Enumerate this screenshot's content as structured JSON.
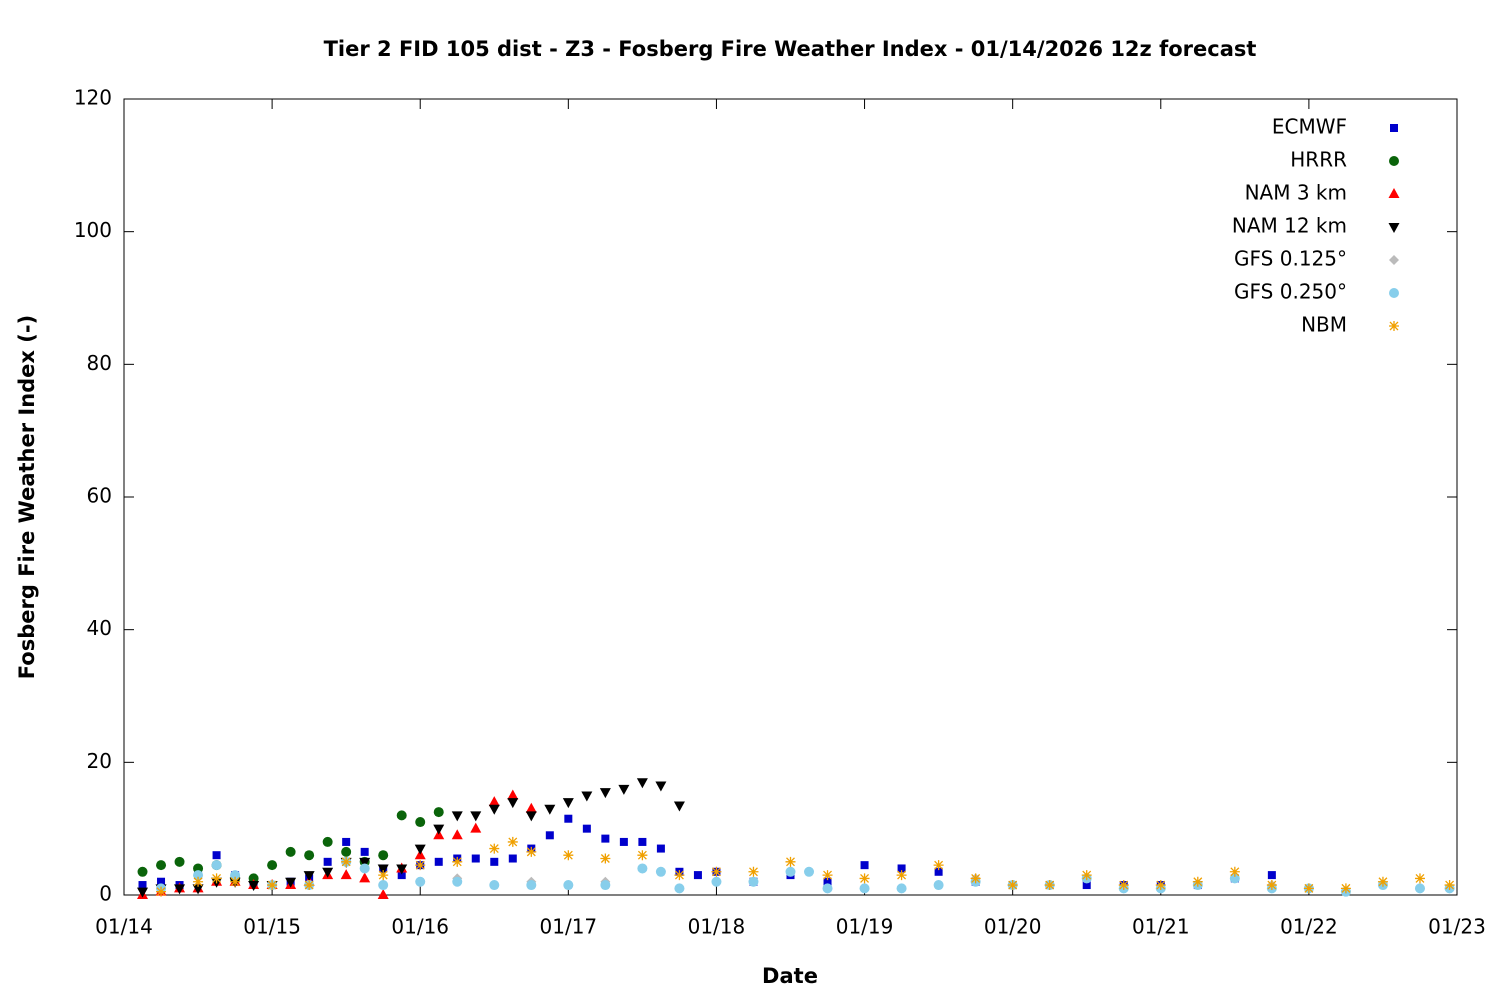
{
  "chart_data": {
    "type": "scatter",
    "title": "Tier 2 FID 105 dist - Z3 - Fosberg Fire Weather Index - 01/14/2026 12z forecast",
    "xlabel": "Date",
    "ylabel": "Fosberg Fire Weather Index (-)",
    "xlim": [
      14,
      23
    ],
    "xticks": [
      {
        "value": 14,
        "label": "01/14"
      },
      {
        "value": 15,
        "label": "01/15"
      },
      {
        "value": 16,
        "label": "01/16"
      },
      {
        "value": 17,
        "label": "01/17"
      },
      {
        "value": 18,
        "label": "01/18"
      },
      {
        "value": 19,
        "label": "01/19"
      },
      {
        "value": 20,
        "label": "01/20"
      },
      {
        "value": 21,
        "label": "01/21"
      },
      {
        "value": 22,
        "label": "01/22"
      },
      {
        "value": 23,
        "label": "01/23"
      }
    ],
    "ylim": [
      0,
      120
    ],
    "yticks": [
      0,
      20,
      40,
      60,
      80,
      100,
      120
    ],
    "legend": "top-right",
    "series": [
      {
        "name": "ECMWF",
        "color": "#0000cc",
        "marker": "square",
        "x": [
          14.125,
          14.25,
          14.375,
          14.5,
          14.625,
          14.75,
          14.875,
          15.0,
          15.125,
          15.25,
          15.375,
          15.5,
          15.625,
          15.75,
          15.875,
          16.0,
          16.125,
          16.25,
          16.375,
          16.5,
          16.625,
          16.75,
          16.875,
          17.0,
          17.125,
          17.25,
          17.375,
          17.5,
          17.625,
          17.75,
          17.875,
          18.0,
          18.25,
          18.5,
          18.75,
          19.0,
          19.25,
          19.5,
          19.75,
          20.0,
          20.25,
          20.5,
          20.75,
          21.0,
          21.25,
          21.5,
          21.75
        ],
        "values": [
          1.5,
          2,
          1.5,
          3,
          6,
          3,
          2,
          1.5,
          2,
          2.5,
          5,
          8,
          6.5,
          4,
          3,
          4.5,
          5,
          5.5,
          5.5,
          5,
          5.5,
          7,
          9,
          11.5,
          10,
          8.5,
          8,
          8,
          7,
          3.5,
          3,
          3.5,
          2,
          3,
          2,
          4.5,
          4,
          3.5,
          2,
          1.5,
          1.5,
          1.5,
          1.5,
          1.5,
          1.5,
          2.5,
          3
        ]
      },
      {
        "name": "HRRR",
        "color": "#0a640a",
        "marker": "circle",
        "x": [
          14.125,
          14.25,
          14.375,
          14.5,
          14.625,
          14.75,
          14.875,
          15.0,
          15.125,
          15.25,
          15.375,
          15.5,
          15.625,
          15.75,
          15.875,
          16.0,
          16.125
        ],
        "values": [
          3.5,
          4.5,
          5,
          4,
          4.5,
          2.5,
          2.5,
          4.5,
          6.5,
          6,
          8,
          6.5,
          5,
          6,
          12,
          11,
          12.5
        ]
      },
      {
        "name": "NAM 3 km",
        "color": "#ff0000",
        "marker": "triangle-up",
        "x": [
          14.125,
          14.25,
          14.375,
          14.5,
          14.625,
          14.75,
          14.875,
          15.0,
          15.125,
          15.25,
          15.375,
          15.5,
          15.625,
          15.75,
          15.875,
          16.0,
          16.125,
          16.25,
          16.375,
          16.5,
          16.625,
          16.75
        ],
        "values": [
          0,
          0.5,
          1,
          1,
          2,
          2,
          1.5,
          1.5,
          1.5,
          2,
          3,
          3,
          2.5,
          0,
          4,
          6,
          9,
          9,
          10,
          14,
          15,
          13
        ]
      },
      {
        "name": "NAM 12 km",
        "color": "#000000",
        "marker": "triangle-down",
        "x": [
          14.125,
          14.25,
          14.375,
          14.5,
          14.625,
          14.75,
          14.875,
          15.0,
          15.125,
          15.25,
          15.375,
          15.5,
          15.625,
          15.75,
          15.875,
          16.0,
          16.125,
          16.25,
          16.375,
          16.5,
          16.625,
          16.75,
          16.875,
          17.0,
          17.125,
          17.25,
          17.375,
          17.5,
          17.625,
          17.75
        ],
        "values": [
          0.5,
          1,
          1,
          1,
          2,
          2,
          1.5,
          1.5,
          2,
          3,
          3.5,
          5,
          5,
          4,
          4,
          7,
          10,
          12,
          12,
          13,
          14,
          12,
          13,
          14,
          15,
          15.5,
          16,
          17,
          16.5,
          13.5
        ]
      },
      {
        "name": "GFS 0.125°",
        "color": "#bbbbbb",
        "marker": "diamond",
        "x": [
          14.25,
          14.5,
          14.625,
          14.75,
          15.0,
          15.25,
          15.5,
          15.625,
          15.75,
          16.0,
          16.25,
          16.5,
          16.75,
          17.0,
          17.25,
          17.5,
          17.625,
          17.75,
          18.0,
          18.25,
          18.5,
          18.625,
          18.75,
          19.0,
          19.25,
          19.5,
          19.75,
          20.0,
          20.25,
          20.5,
          20.75,
          21.0,
          21.25,
          21.5,
          21.75,
          22.0,
          22.25,
          22.5,
          22.75,
          22.95
        ],
        "values": [
          1,
          3,
          4.5,
          3,
          1.5,
          1.5,
          5,
          4,
          1.5,
          2,
          2.5,
          1.5,
          2,
          1.5,
          2,
          4,
          3.5,
          1,
          2,
          2,
          3.5,
          3.5,
          1,
          1,
          1,
          1.5,
          2.5,
          1.5,
          1.5,
          2.5,
          1,
          1,
          1.5,
          2.5,
          1.5,
          1,
          0.5,
          1.5,
          1,
          1
        ]
      },
      {
        "name": "GFS 0.250°",
        "color": "#87ceeb",
        "marker": "circle",
        "x": [
          14.25,
          14.5,
          14.625,
          14.75,
          15.0,
          15.25,
          15.5,
          15.625,
          15.75,
          16.0,
          16.25,
          16.5,
          16.75,
          17.0,
          17.25,
          17.5,
          17.625,
          17.75,
          18.0,
          18.25,
          18.5,
          18.625,
          18.75,
          19.0,
          19.25,
          19.5,
          19.75,
          20.0,
          20.25,
          20.5,
          20.75,
          21.0,
          21.25,
          21.5,
          21.75,
          22.0,
          22.25,
          22.5,
          22.75,
          22.95
        ],
        "values": [
          1,
          3,
          4.5,
          3,
          1.5,
          1.5,
          5,
          4,
          1.5,
          2,
          2,
          1.5,
          1.5,
          1.5,
          1.5,
          4,
          3.5,
          1,
          2,
          2,
          3.5,
          3.5,
          1,
          1,
          1,
          1.5,
          2,
          1.5,
          1.5,
          2.5,
          1,
          1,
          1.5,
          2.5,
          1,
          1,
          0.5,
          1.5,
          1,
          1
        ]
      },
      {
        "name": "NBM",
        "color": "#f0a000",
        "marker": "asterisk",
        "x": [
          14.25,
          14.5,
          14.625,
          14.75,
          15.0,
          15.25,
          15.5,
          15.75,
          16.0,
          16.25,
          16.5,
          16.625,
          16.75,
          17.0,
          17.25,
          17.5,
          17.75,
          18.0,
          18.25,
          18.5,
          18.75,
          19.0,
          19.25,
          19.5,
          19.75,
          20.0,
          20.25,
          20.5,
          20.75,
          21.0,
          21.25,
          21.5,
          21.75,
          22.0,
          22.25,
          22.5,
          22.75,
          22.95
        ],
        "values": [
          0.5,
          2,
          2.5,
          2,
          1.5,
          1.5,
          5,
          3,
          4.5,
          5,
          7,
          8,
          6.5,
          6,
          5.5,
          6,
          3,
          3.5,
          3.5,
          5,
          3,
          2.5,
          3,
          4.5,
          2.5,
          1.5,
          1.5,
          3,
          1.5,
          1.5,
          2,
          3.5,
          1.5,
          1,
          1,
          2,
          2.5,
          1.5
        ]
      }
    ]
  }
}
